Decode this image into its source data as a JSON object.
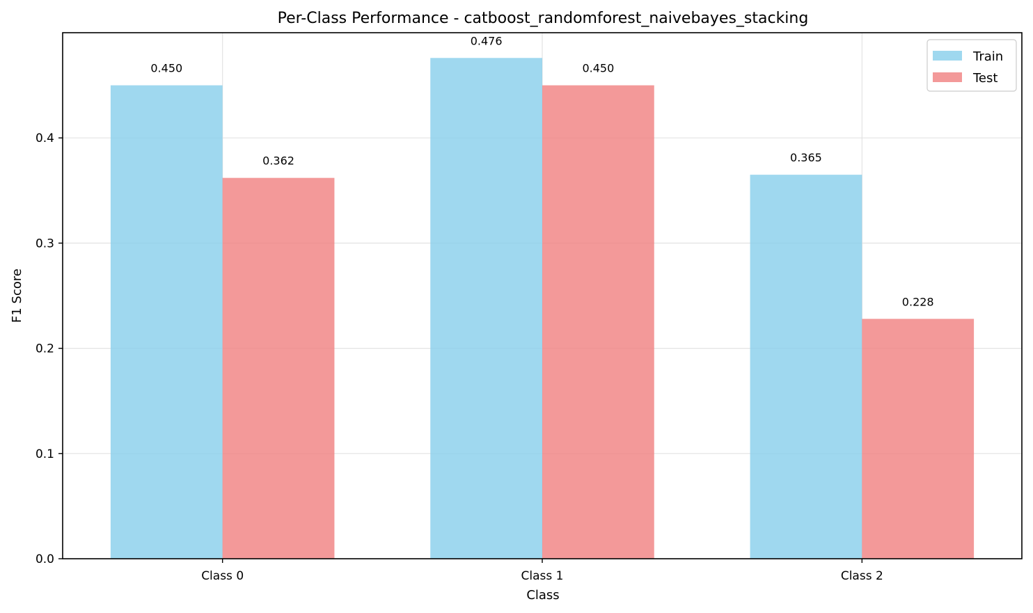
{
  "chart_data": {
    "type": "bar",
    "title": "Per-Class Performance - catboost_randomforest_naivebayes_stacking",
    "xlabel": "Class",
    "ylabel": "F1 Score",
    "categories": [
      "Class 0",
      "Class 1",
      "Class 2"
    ],
    "series": [
      {
        "name": "Train",
        "values": [
          0.45,
          0.476,
          0.365
        ],
        "labels": [
          "0.450",
          "0.476",
          "0.365"
        ],
        "color": "#87CEEB"
      },
      {
        "name": "Test",
        "values": [
          0.362,
          0.45,
          0.228
        ],
        "labels": [
          "0.362",
          "0.450",
          "0.228"
        ],
        "color": "#F08080"
      }
    ],
    "ylim": [
      0,
      0.5
    ],
    "yticks": [
      0.0,
      0.1,
      0.2,
      0.3,
      0.4
    ],
    "ytick_labels": [
      "0.0",
      "0.1",
      "0.2",
      "0.3",
      "0.4"
    ],
    "grid": true,
    "legend_position": "top-right"
  }
}
